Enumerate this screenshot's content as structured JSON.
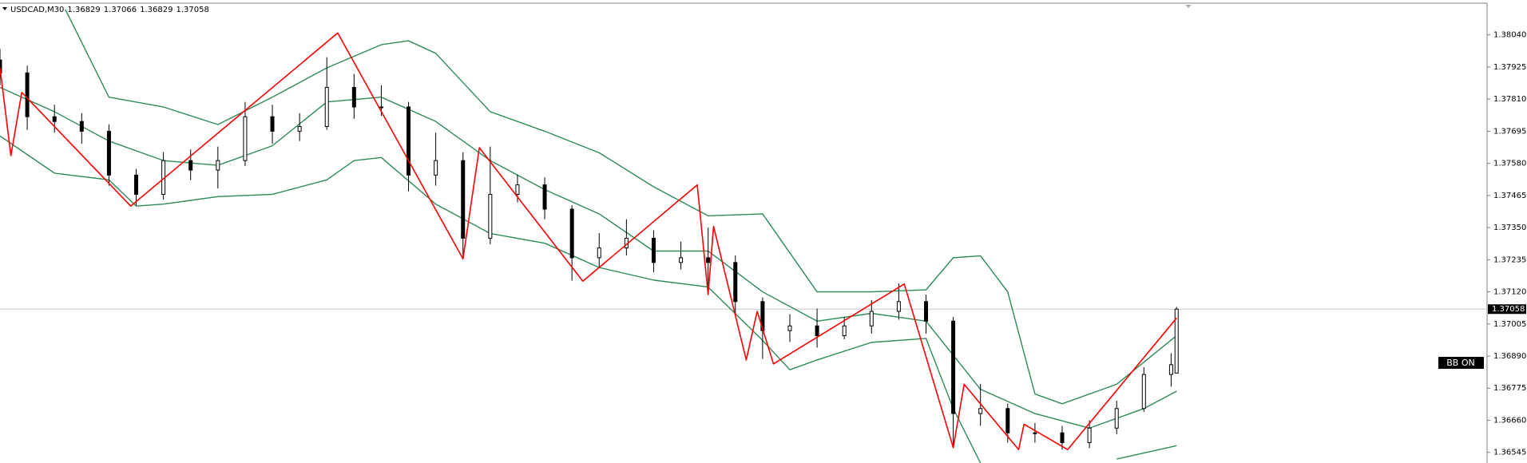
{
  "chart_data": {
    "type": "candlestick",
    "title": "USDCAD,M30",
    "x": [
      0,
      5,
      10,
      15,
      20,
      25,
      30,
      35,
      40,
      45,
      50,
      55,
      60,
      65,
      70,
      75,
      80,
      85,
      90,
      95,
      100,
      105,
      110,
      115,
      120,
      125,
      130,
      135,
      140,
      145,
      150,
      155,
      160,
      165,
      170,
      175,
      180,
      185,
      190,
      195,
      200,
      205,
      210,
      215,
      216
    ],
    "open": [
      1.3795,
      1.37904,
      1.37747,
      1.3773,
      1.37695,
      1.37538,
      1.37469,
      1.3759,
      1.37556,
      1.3759,
      1.37747,
      1.37695,
      1.37712,
      1.37852,
      1.37782,
      1.37782,
      1.37538,
      1.3759,
      1.37312,
      1.37469,
      1.37503,
      1.37416,
      1.37242,
      1.37277,
      1.37312,
      1.37225,
      1.37242,
      1.37225,
      1.37085,
      1.36981,
      1.36998,
      1.36963,
      1.36998,
      1.3705,
      1.37085,
      1.37015,
      1.36684,
      1.36702,
      1.36615,
      1.36615,
      1.3658,
      1.36632,
      1.36702,
      1.36824,
      1.36829
    ],
    "high": [
      1.3799,
      1.3793,
      1.3779,
      1.3776,
      1.3772,
      1.3756,
      1.3762,
      1.3763,
      1.3764,
      1.378,
      1.3779,
      1.3776,
      1.3796,
      1.379,
      1.3786,
      1.378,
      1.3769,
      1.3762,
      1.3764,
      1.3754,
      1.3753,
      1.3743,
      1.3733,
      1.3738,
      1.3734,
      1.373,
      1.3735,
      1.3725,
      1.371,
      1.3704,
      1.3706,
      1.3703,
      1.3709,
      1.3715,
      1.3711,
      1.3703,
      1.3679,
      1.3672,
      1.3665,
      1.3664,
      1.3666,
      1.3673,
      1.3685,
      1.369,
      1.37066
    ],
    "low": [
      1.3786,
      1.377,
      1.3769,
      1.3765,
      1.375,
      1.3743,
      1.3745,
      1.3752,
      1.3749,
      1.3757,
      1.3765,
      1.3766,
      1.377,
      1.3774,
      1.3775,
      1.3748,
      1.375,
      1.3724,
      1.3729,
      1.3744,
      1.3738,
      1.3716,
      1.3721,
      1.3725,
      1.3719,
      1.372,
      1.3711,
      1.3704,
      1.3688,
      1.3694,
      1.3692,
      1.3695,
      1.3697,
      1.3702,
      1.3697,
      1.3656,
      1.3664,
      1.3658,
      1.3658,
      1.36555,
      1.3656,
      1.3661,
      1.3669,
      1.3678,
      1.36829
    ],
    "close": [
      1.37904,
      1.37747,
      1.3773,
      1.37695,
      1.37538,
      1.37469,
      1.3759,
      1.37556,
      1.3759,
      1.37747,
      1.37695,
      1.37712,
      1.37852,
      1.37782,
      1.37782,
      1.37538,
      1.3759,
      1.37312,
      1.37469,
      1.37503,
      1.37416,
      1.37242,
      1.37277,
      1.37312,
      1.37225,
      1.37242,
      1.37225,
      1.37085,
      1.36981,
      1.36998,
      1.36963,
      1.36998,
      1.3705,
      1.37085,
      1.37015,
      1.36684,
      1.36702,
      1.36615,
      1.36615,
      1.3658,
      1.36632,
      1.36702,
      1.36824,
      1.36859,
      1.37058
    ],
    "candle_color": "#000000",
    "xlim": [
      0,
      273
    ],
    "ylim": [
      1.36507,
      1.38165
    ],
    "yticks": [
      {
        "value": 1.3804,
        "label": "1.38040"
      },
      1.37925,
      {
        "value": 1.3781,
        "label": "1.37810"
      },
      1.37695,
      {
        "value": 1.3758,
        "label": "1.37580"
      },
      1.37465,
      {
        "value": 1.3735,
        "label": "1.37350"
      },
      1.37235,
      {
        "value": 1.3712,
        "label": "1.37120"
      },
      1.37005,
      {
        "value": 1.3689,
        "label": "1.36890"
      },
      1.36775,
      {
        "value": 1.3666,
        "label": "1.36660"
      },
      1.36545
    ],
    "grid": false,
    "band_color": "#2e8b57",
    "middle_band": {
      "x": [
        0,
        10,
        20,
        30,
        40,
        50,
        60,
        70,
        80,
        90,
        100,
        110,
        120,
        130,
        140,
        150,
        160,
        170,
        180,
        190,
        200,
        210,
        216
      ],
      "values": [
        1.37852,
        1.37765,
        1.3766,
        1.3759,
        1.37573,
        1.37643,
        1.378,
        1.37817,
        1.3773,
        1.3759,
        1.37486,
        1.37399,
        1.37266,
        1.37266,
        1.3712,
        1.37015,
        1.37043,
        1.37015,
        1.36771,
        1.36684,
        1.36632,
        1.36702,
        1.36764
      ]
    },
    "upper_band": {
      "x": [
        12,
        20,
        30,
        40,
        50,
        60,
        70,
        75,
        80,
        90,
        100,
        110,
        120,
        130,
        140,
        150,
        160,
        170,
        175,
        180,
        185,
        190,
        195,
        205,
        216
      ],
      "values": [
        1.38131,
        1.37817,
        1.37782,
        1.37719,
        1.37817,
        1.37922,
        1.38005,
        1.38019,
        1.37974,
        1.37765,
        1.37695,
        1.37618,
        1.37496,
        1.37392,
        1.37399,
        1.3712,
        1.3712,
        1.37127,
        1.37242,
        1.37249,
        1.3712,
        1.36754,
        1.36719,
        1.36789,
        1.36963
      ]
    },
    "lower_band": {
      "x": [
        0,
        10,
        20,
        25,
        30,
        40,
        50,
        60,
        65,
        70,
        80,
        90,
        100,
        110,
        120,
        130,
        140,
        145,
        150,
        160,
        170,
        175,
        180,
        190,
        205,
        216
      ],
      "values": [
        1.37678,
        1.37545,
        1.37521,
        1.37427,
        1.37434,
        1.37461,
        1.37469,
        1.37521,
        1.3759,
        1.37601,
        1.37434,
        1.37329,
        1.37294,
        1.37207,
        1.37162,
        1.37137,
        1.36946,
        1.36841,
        1.36876,
        1.36939,
        1.36953,
        1.36702,
        1.36507,
        null,
        1.36521,
        1.36569
      ]
    },
    "zigzag": {
      "color": "#ff0000",
      "x": [
        0,
        2,
        4,
        24,
        62,
        85,
        88,
        107,
        128,
        130,
        131,
        137,
        139,
        142,
        166,
        175,
        177,
        187,
        188,
        196,
        216
      ],
      "values": [
        1.37922,
        1.37608,
        1.37834,
        1.37427,
        1.38047,
        1.37238,
        1.37636,
        1.37158,
        1.37503,
        1.3711,
        1.37354,
        1.36876,
        1.3705,
        1.36862,
        1.37148,
        1.36562,
        1.36789,
        1.36555,
        1.36646,
        1.36555,
        1.37026
      ]
    },
    "price_line_color": "#c8c8c8",
    "annotation": "BB ON"
  }
}
